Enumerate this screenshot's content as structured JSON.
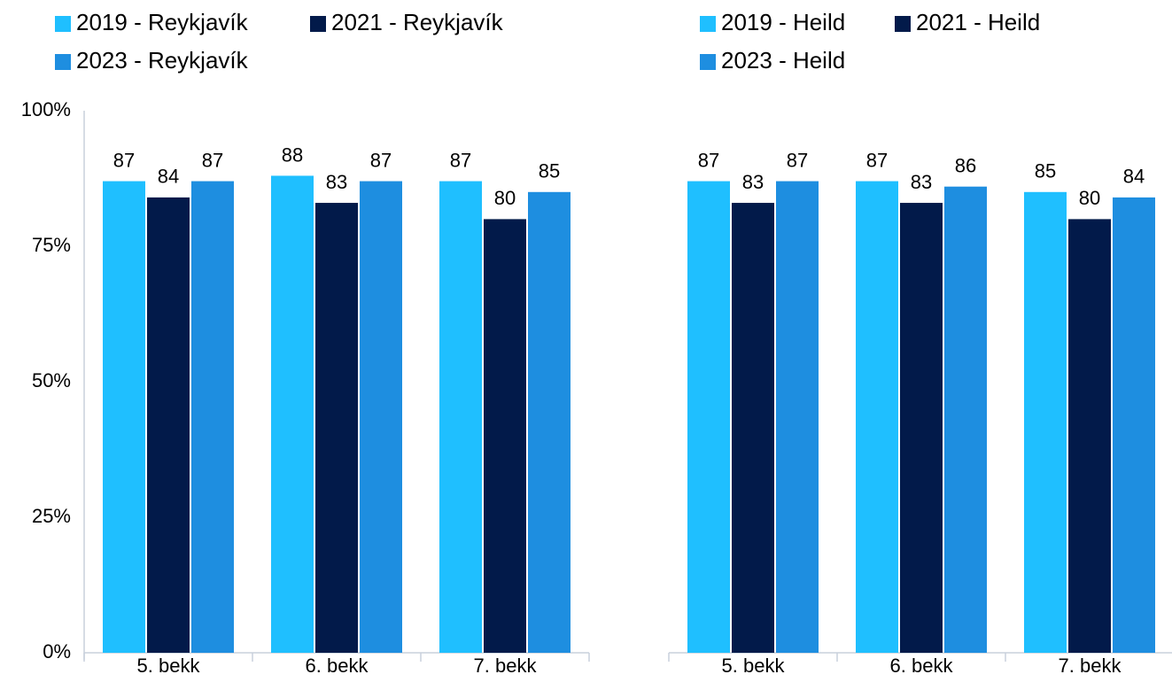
{
  "chart_data": [
    {
      "type": "bar",
      "categories": [
        "5. bekk",
        "6. bekk",
        "7. bekk"
      ],
      "series": [
        {
          "name": "2019 - Reykjavík",
          "color": "#1fbfff",
          "values": [
            87,
            88,
            87
          ]
        },
        {
          "name": "2021 - Reykjavík",
          "color": "#021a4a",
          "values": [
            84,
            83,
            80
          ]
        },
        {
          "name": "2023 - Reykjavík",
          "color": "#1e8ee0",
          "values": [
            87,
            87,
            85
          ]
        }
      ],
      "ylim": [
        0,
        100
      ],
      "yticks": [
        {
          "value": 0,
          "label": "0%"
        },
        {
          "value": 25,
          "label": "25%"
        },
        {
          "value": 50,
          "label": "50%"
        },
        {
          "value": 75,
          "label": "75%"
        },
        {
          "value": 100,
          "label": "100%"
        }
      ]
    },
    {
      "type": "bar",
      "categories": [
        "5. bekk",
        "6. bekk",
        "7. bekk"
      ],
      "series": [
        {
          "name": "2019 - Heild",
          "color": "#1fbfff",
          "values": [
            87,
            87,
            85
          ]
        },
        {
          "name": "2021 - Heild",
          "color": "#021a4a",
          "values": [
            83,
            83,
            80
          ]
        },
        {
          "name": "2023 - Heild",
          "color": "#1e8ee0",
          "values": [
            87,
            86,
            84
          ]
        }
      ],
      "ylim": [
        0,
        100
      ]
    }
  ]
}
